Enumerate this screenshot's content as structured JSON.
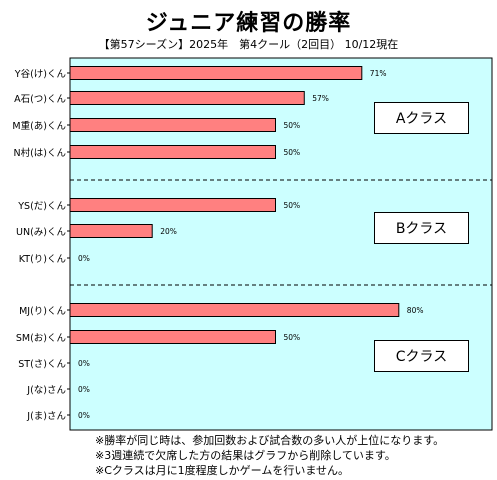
{
  "title": "ジュニア練習の勝率",
  "subtitle": "【第57シーズン】2025年　第4クール（2回目） 10/12現在",
  "notes": [
    "※勝率が同じ時は、参加回数および試合数の多い人が上位になります。",
    "※3週連続で欠席した方の結果はグラフから削除しています。",
    "※Cクラスは月に1度程度しかゲームを行いません。"
  ],
  "colors": {
    "plot_bg": "#ccffff",
    "bar_fill": "#ff8080",
    "bar_stroke": "#000000"
  },
  "chart_data": {
    "type": "bar",
    "orientation": "horizontal",
    "unit": "%",
    "xlim": [
      0,
      100
    ],
    "categories": [
      "Y谷(け)くん",
      "A石(つ)くん",
      "M重(あ)くん",
      "N村(は)くん",
      "YS(だ)くん",
      "UN(み)くん",
      "KT(り)くん",
      "MJ(り)くん",
      "SM(お)くん",
      "ST(さ)くん",
      "J(な)さん",
      "J(ま)さん"
    ],
    "values": [
      71,
      57,
      50,
      50,
      50,
      20,
      0,
      80,
      50,
      0,
      0,
      0
    ],
    "labels": [
      "71%",
      "57%",
      "50%",
      "50%",
      "50%",
      "20%",
      "0%",
      "80%",
      "50%",
      "0%",
      "0%",
      "0%"
    ],
    "groups": [
      {
        "name": "Aクラス",
        "members": [
          "Y谷(け)くん",
          "A石(つ)くん",
          "M重(あ)くん",
          "N村(は)くん"
        ]
      },
      {
        "name": "Bクラス",
        "members": [
          "YS(だ)くん",
          "UN(み)くん",
          "KT(り)くん"
        ]
      },
      {
        "name": "Cクラス",
        "members": [
          "MJ(り)くん",
          "SM(お)くん",
          "ST(さ)くん",
          "J(な)さん",
          "J(ま)さん"
        ]
      }
    ]
  }
}
